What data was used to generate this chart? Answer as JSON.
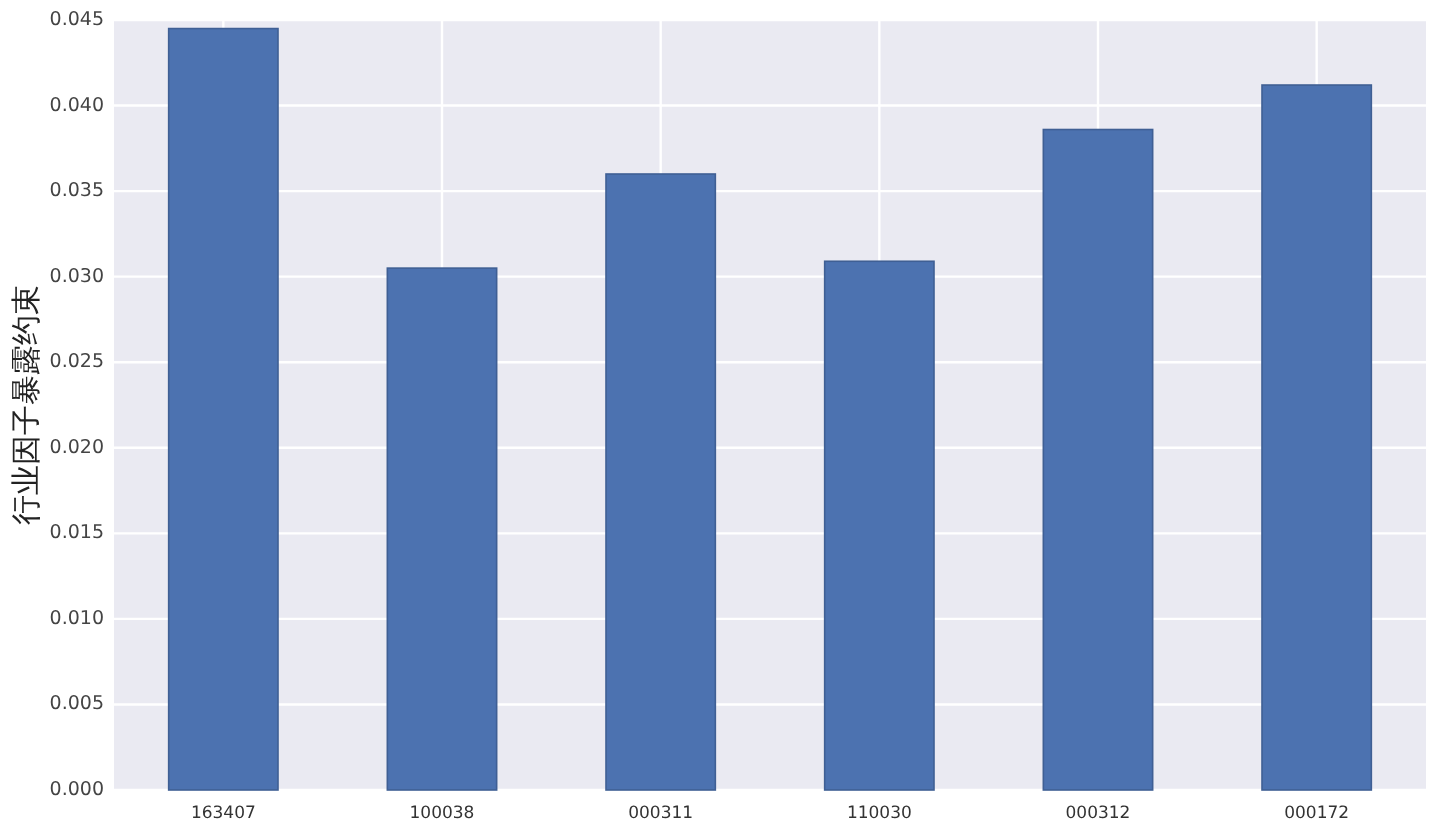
{
  "chart_data": {
    "type": "bar",
    "ylabel": "行业因子暴露约束",
    "categories": [
      "163407",
      "100038",
      "000311",
      "110030",
      "000312",
      "000172"
    ],
    "values": [
      0.0445,
      0.0305,
      0.036,
      0.0309,
      0.0386,
      0.0412
    ],
    "color": "#4c72b0",
    "ylim": [
      0,
      0.045
    ],
    "yticks": [
      {
        "value": 0,
        "label": "0.000"
      },
      {
        "value": 0.005,
        "label": "0.005"
      },
      {
        "value": 0.01,
        "label": "0.010"
      },
      {
        "value": 0.015,
        "label": "0.015"
      },
      {
        "value": 0.02,
        "label": "0.020"
      },
      {
        "value": 0.025,
        "label": "0.025"
      },
      {
        "value": 0.03,
        "label": "0.030"
      },
      {
        "value": 0.035,
        "label": "0.035"
      },
      {
        "value": 0.04,
        "label": "0.040"
      },
      {
        "value": 0.045,
        "label": "0.045"
      }
    ],
    "grid": true
  }
}
